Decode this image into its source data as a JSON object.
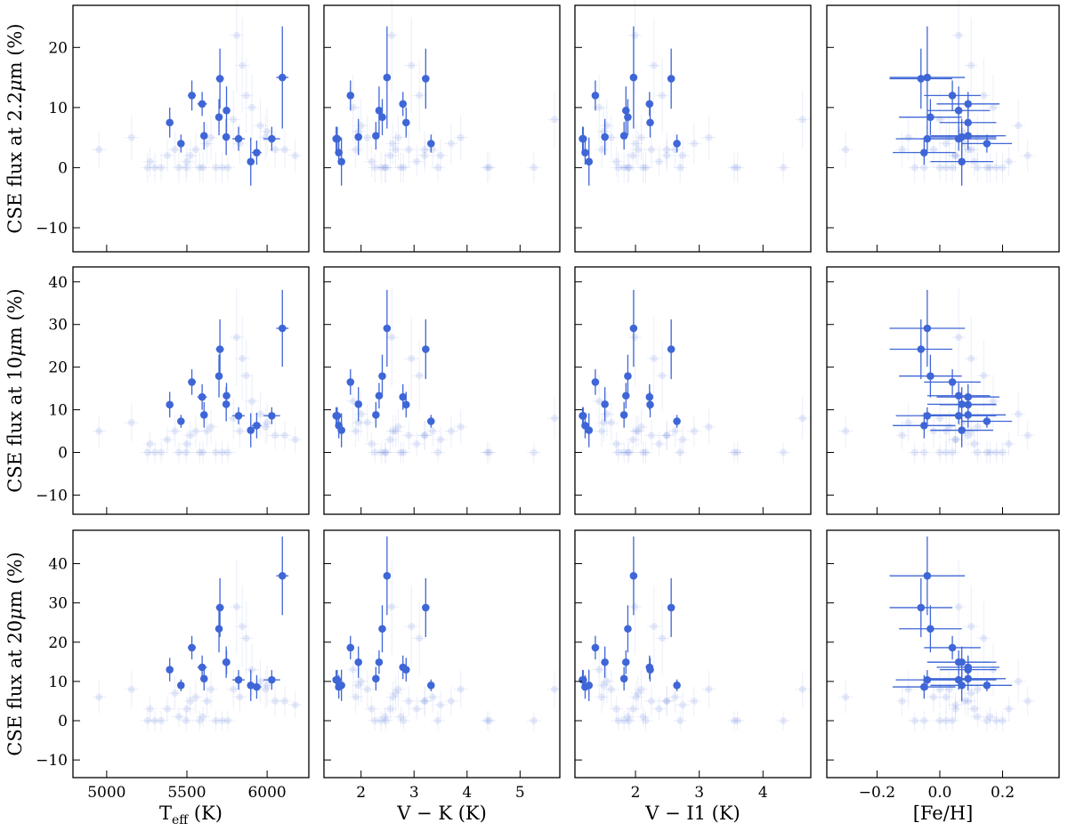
{
  "chart_data": {
    "type": "scatter",
    "layout": "3x4 grid, shared x per column, shared y per row",
    "colors": {
      "points": "#3f66d6",
      "axes": "#000000"
    },
    "columns": [
      {
        "key": "teff",
        "xlabel": "T_eff (K)",
        "xlabel_main": "T",
        "xlabel_sub": "eff",
        "xlabel_rest": " (K)",
        "xlim": [
          4790,
          6260
        ],
        "ticks": [
          5000,
          5500,
          6000
        ],
        "tick_labels": [
          "5000",
          "5500",
          "6000"
        ]
      },
      {
        "key": "vk",
        "xlabel": "V − K (K)",
        "xlim": [
          1.3,
          5.75
        ],
        "ticks": [
          2,
          3,
          4,
          5
        ],
        "tick_labels": [
          "2",
          "3",
          "4",
          "5"
        ]
      },
      {
        "key": "vi",
        "xlabel": "V − I1 (K)",
        "xlim": [
          1.05,
          4.75
        ],
        "ticks": [
          2,
          3,
          4
        ],
        "tick_labels": [
          "2",
          "3",
          "4"
        ]
      },
      {
        "key": "feh",
        "xlabel": "[Fe/H]",
        "xlim": [
          -0.36,
          0.38
        ],
        "ticks": [
          -0.2,
          0.0,
          0.2
        ],
        "tick_labels": [
          "−0.2",
          "0.0",
          "0.2"
        ]
      }
    ],
    "rows": [
      {
        "key": "r22",
        "ylabel": "CSE flux at 2.2μm (%)",
        "ylabel_pre": "CSE flux at 2.2",
        "ylabel_mu": "μ",
        "ylabel_post": "m (%)",
        "ylim": [
          -14,
          27
        ],
        "ticks": [
          -10,
          0,
          10,
          20
        ],
        "tick_labels": [
          "−10",
          "0",
          "10",
          "20"
        ]
      },
      {
        "key": "r10",
        "ylabel": "CSE flux at 10μm (%)",
        "ylabel_pre": "CSE flux at 10",
        "ylabel_mu": "μ",
        "ylabel_post": "m (%)",
        "ylim": [
          -14.5,
          43.5
        ],
        "ticks": [
          -10,
          0,
          10,
          20,
          30,
          40
        ],
        "tick_labels": [
          "−10",
          "0",
          "10",
          "20",
          "30",
          "40"
        ]
      },
      {
        "key": "r20",
        "ylabel": "CSE flux at 20μm (%)",
        "ylabel_pre": "CSE flux at 20",
        "ylabel_mu": "μ",
        "ylabel_post": "m (%)",
        "ylim": [
          -14.5,
          48.5
        ],
        "ticks": [
          -10,
          0,
          10,
          20,
          30,
          40
        ],
        "tick_labels": [
          "−10",
          "0",
          "10",
          "20",
          "30",
          "40"
        ]
      }
    ],
    "detected": {
      "teff": [
        5393,
        5463,
        5531,
        5595,
        5607,
        5700,
        5706,
        5745,
        5747,
        5822,
        5898,
        5935,
        6029,
        6095
      ],
      "teff_err": [
        18,
        18,
        25,
        30,
        18,
        18,
        25,
        18,
        18,
        38,
        22,
        30,
        52,
        38
      ],
      "vk": [
        2.85,
        3.32,
        1.8,
        2.79,
        2.28,
        2.4,
        3.22,
        1.95,
        2.34,
        1.53,
        1.63,
        1.58,
        1.55,
        2.49
      ],
      "vi": [
        2.23,
        2.65,
        1.37,
        2.22,
        1.82,
        1.88,
        2.56,
        1.52,
        1.85,
        1.18,
        1.27,
        1.21,
        1.17,
        1.97
      ],
      "feh": [
        0.09,
        0.15,
        0.04,
        0.09,
        0.09,
        -0.03,
        -0.06,
        0.07,
        0.06,
        -0.04,
        0.07,
        -0.05,
        0.06,
        -0.04
      ],
      "feh_err": [
        0.09,
        0.08,
        0.09,
        0.1,
        0.12,
        0.1,
        0.1,
        0.11,
        0.1,
        0.1,
        0.1,
        0.1,
        0.12,
        0.12
      ],
      "r22": [
        7.5,
        4.0,
        12.0,
        10.6,
        5.3,
        8.4,
        14.8,
        5.1,
        9.5,
        4.8,
        1.0,
        2.5,
        4.8,
        15.0
      ],
      "r22_err": [
        2.5,
        1.5,
        2.5,
        2.0,
        2.3,
        3.0,
        5.0,
        3.0,
        4.0,
        2.0,
        4.0,
        2.0,
        2.0,
        8.5
      ],
      "r10": [
        11.2,
        7.3,
        16.5,
        13.0,
        8.8,
        17.9,
        24.2,
        11.3,
        13.3,
        8.6,
        5.2,
        6.3,
        8.6,
        29.1
      ],
      "r10_err": [
        3.0,
        1.5,
        3.0,
        3.0,
        3.0,
        5.0,
        7.0,
        4.0,
        3.0,
        2.0,
        4.0,
        3.0,
        2.0,
        9.0
      ],
      "r20": [
        13.0,
        9.0,
        18.6,
        13.6,
        10.7,
        23.4,
        28.8,
        14.9,
        14.9,
        10.4,
        9.0,
        8.6,
        10.4,
        36.9
      ],
      "r20_err": [
        3.0,
        1.5,
        3.0,
        3.0,
        3.0,
        6.0,
        7.5,
        4.0,
        3.0,
        2.5,
        4.0,
        3.0,
        2.5,
        10.0
      ]
    },
    "background": {
      "teff": [
        4952,
        5155,
        5255,
        5300,
        5340,
        5378,
        5425,
        5450,
        5495,
        5500,
        5522,
        5555,
        5580,
        5625,
        5650,
        5680,
        5720,
        5755,
        5790,
        5810,
        5845,
        5870,
        5905,
        5958,
        5990,
        6050,
        6110,
        6175,
        5270,
        5600,
        5830,
        6000
      ],
      "vk": [
        1.9,
        2.12,
        2.26,
        2.38,
        2.47,
        2.55,
        2.65,
        2.75,
        2.8,
        3.05,
        3.2,
        3.35,
        3.45,
        3.7,
        3.88,
        4.38,
        4.42,
        5.26,
        5.65,
        2.58,
        2.95,
        3.1,
        1.85,
        2.0,
        2.7,
        2.9,
        3.2,
        3.5,
        2.2,
        2.45,
        2.6,
        1.95
      ],
      "vi": [
        1.47,
        1.62,
        1.73,
        1.82,
        1.9,
        1.96,
        2.04,
        2.12,
        2.16,
        2.37,
        2.49,
        2.62,
        2.7,
        2.92,
        3.15,
        3.55,
        3.6,
        4.32,
        4.62,
        1.99,
        2.29,
        2.42,
        1.43,
        1.55,
        2.09,
        2.25,
        2.49,
        2.74,
        1.7,
        1.88,
        2.01,
        1.5
      ],
      "feh": [
        -0.3,
        -0.1,
        -0.08,
        0.0,
        0.02,
        0.05,
        0.1,
        0.12,
        0.18,
        0.22,
        0.28,
        -0.02,
        0.04,
        0.08,
        0.12,
        0.15,
        0.2,
        -0.05,
        0.0,
        0.06,
        0.1,
        0.14,
        0.17,
        0.25,
        0.03,
        0.09,
        -0.12,
        0.05,
        0.11,
        0.16,
        0.02,
        0.07
      ],
      "r22": [
        3.0,
        5.0,
        0.0,
        0.0,
        0.0,
        2.0,
        3.0,
        0.0,
        0.0,
        1.0,
        2.0,
        3.0,
        0.0,
        4.0,
        5.0,
        0.0,
        0.0,
        0.0,
        8.0,
        22.0,
        17.0,
        12.0,
        10.0,
        7.0,
        5.0,
        3.0,
        3.0,
        2.0,
        1.0,
        0.0,
        4.0,
        6.0
      ],
      "r10": [
        5.0,
        7.0,
        0.0,
        0.0,
        0.0,
        3.0,
        5.0,
        0.0,
        0.0,
        2.0,
        4.0,
        5.0,
        0.0,
        5.0,
        6.0,
        0.0,
        0.0,
        0.0,
        8.0,
        27.0,
        22.0,
        18.0,
        12.0,
        9.0,
        6.0,
        4.0,
        4.0,
        3.0,
        2.0,
        0.0,
        5.0,
        7.0
      ],
      "r20": [
        6.0,
        8.0,
        0.0,
        0.0,
        0.0,
        3.0,
        7.0,
        1.0,
        0.0,
        3.0,
        5.0,
        6.0,
        0.0,
        5.0,
        8.0,
        0.0,
        0.0,
        0.0,
        8.0,
        29.0,
        24.0,
        21.0,
        13.0,
        10.0,
        8.0,
        5.0,
        5.0,
        4.0,
        3.0,
        1.0,
        6.0,
        9.0
      ]
    }
  }
}
